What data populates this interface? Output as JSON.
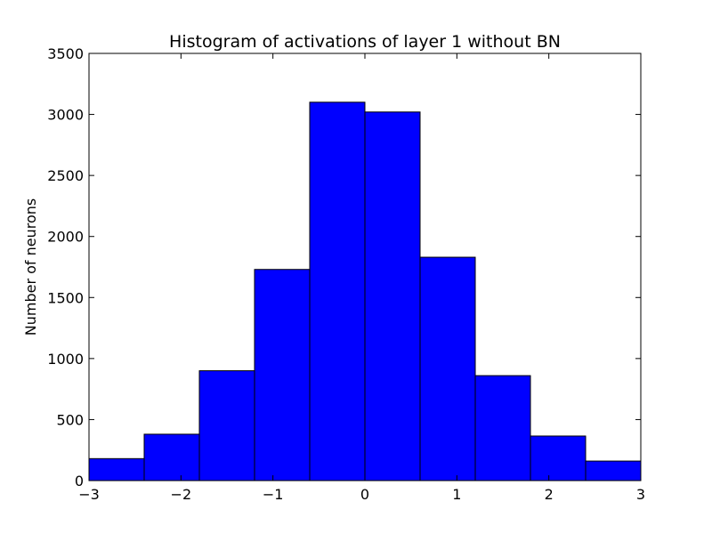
{
  "chart_data": {
    "type": "bar",
    "title": "Histogram of activations of layer 1  without BN",
    "xlabel": "",
    "ylabel": "Number of neurons",
    "xlim": [
      -3,
      3
    ],
    "ylim": [
      0,
      3500
    ],
    "bin_edges": [
      -3,
      -2.4,
      -1.8,
      -1.2,
      -0.6,
      0,
      0.6,
      1.2,
      1.8,
      2.4,
      3
    ],
    "values": [
      180,
      380,
      900,
      1730,
      3100,
      3020,
      1830,
      860,
      365,
      160
    ],
    "x_ticks": [
      -3,
      -2,
      -1,
      0,
      1,
      2,
      3
    ],
    "x_tick_labels": [
      "−3",
      "−2",
      "−1",
      "0",
      "1",
      "2",
      "3"
    ],
    "y_ticks": [
      0,
      500,
      1000,
      1500,
      2000,
      2500,
      3000,
      3500
    ],
    "y_tick_labels": [
      "0",
      "500",
      "1000",
      "1500",
      "2000",
      "2500",
      "3000",
      "3500"
    ],
    "bar_color": "#0000ff",
    "edge_color": "#000000",
    "grid": false,
    "legend": "none"
  }
}
